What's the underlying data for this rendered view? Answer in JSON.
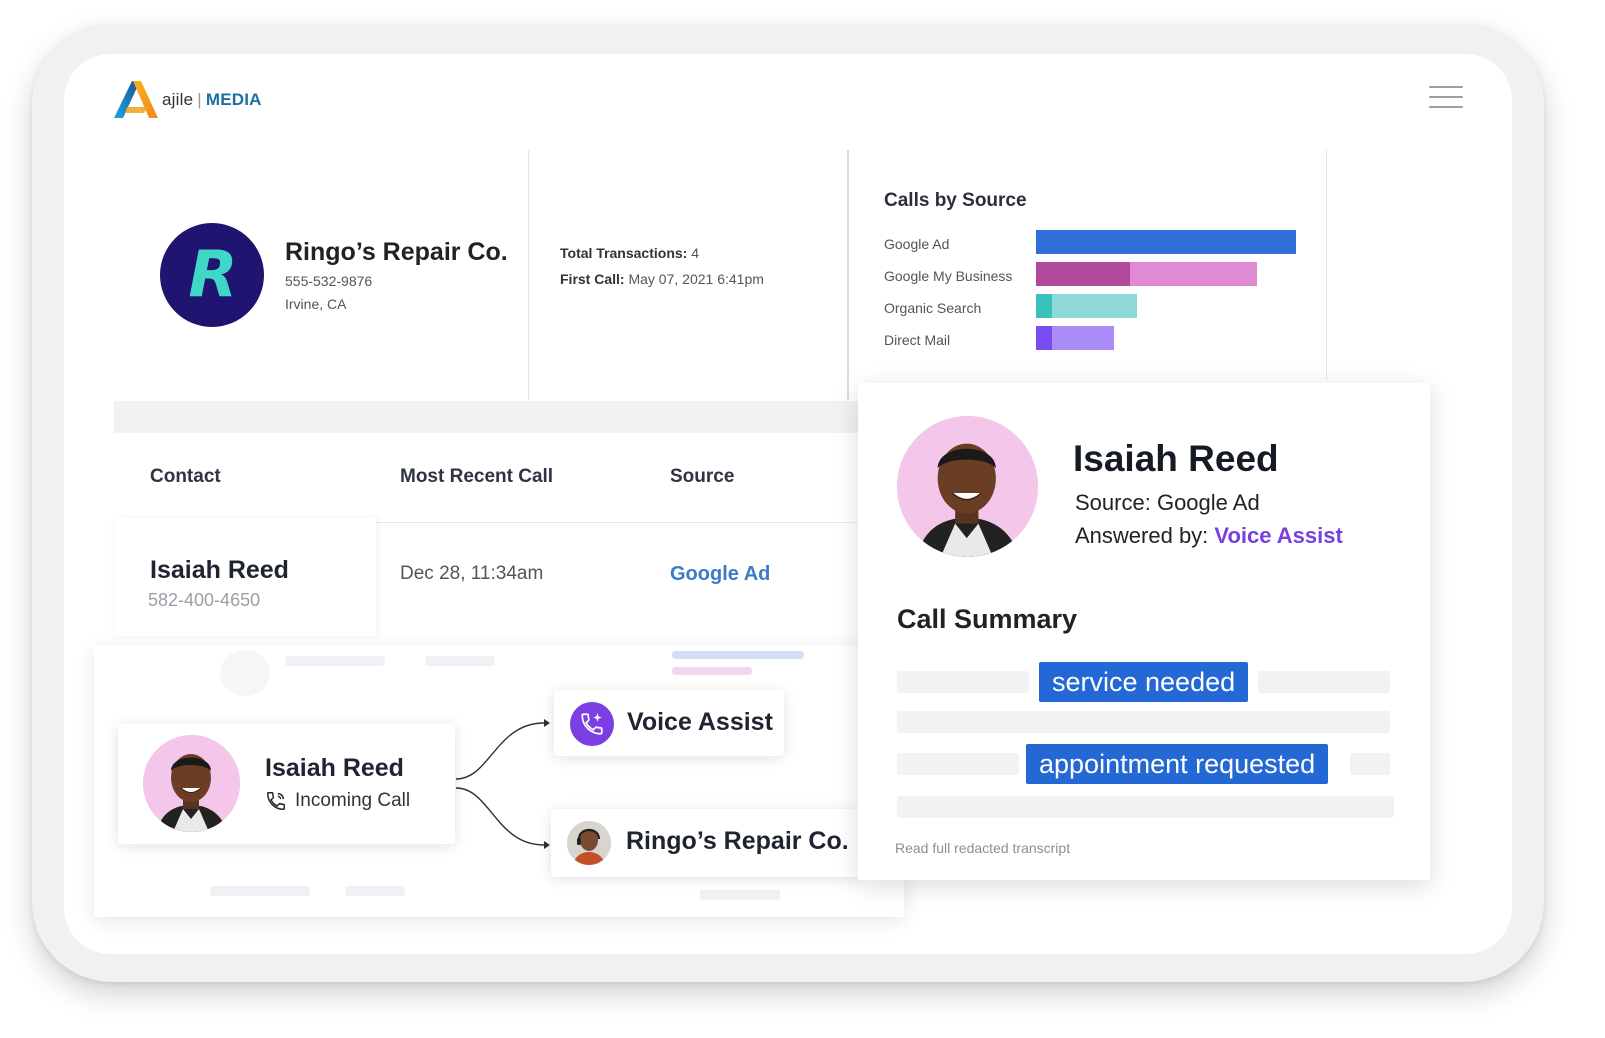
{
  "brand": {
    "logo_mark": "A",
    "name": "ajile",
    "separator": "|",
    "product": "MEDIA"
  },
  "menu": {
    "icon": "hamburger-menu-icon"
  },
  "business": {
    "initial": "R",
    "name": "Ringo’s Repair Co.",
    "phone": "555-532-9876",
    "location": "Irvine, CA",
    "total_transactions_label": "Total Transactions:",
    "total_transactions_value": "4",
    "first_call_label": "First Call:",
    "first_call_value": "May 07, 2021 6:41pm"
  },
  "chart_data": {
    "type": "bar",
    "title": "Calls by Source",
    "orientation": "horizontal",
    "categories": [
      "Google Ad",
      "Google My Business",
      "Organic Search",
      "Direct Mail"
    ],
    "values": [
      100,
      85,
      39,
      30
    ],
    "highlight_values": [
      0,
      36,
      6,
      6
    ],
    "colors": [
      {
        "dark": "#2f6fd6",
        "light": "#2f6fd6"
      },
      {
        "dark": "#b0489c",
        "light": "#df8ad2"
      },
      {
        "dark": "#39c2bc",
        "light": "#8ed9d7"
      },
      {
        "dark": "#7a4bf0",
        "light": "#ab8bf5"
      }
    ],
    "xlim": [
      0,
      100
    ],
    "grid": false,
    "legend": "none"
  },
  "table": {
    "headers": [
      "Contact",
      "Most Recent Call",
      "Source"
    ],
    "row": {
      "contact_name": "Isaiah Reed",
      "contact_phone": "582-400-4650",
      "most_recent_call": "Dec 28, 11:34am",
      "source": "Google Ad"
    }
  },
  "flow": {
    "caller_name": "Isaiah Reed",
    "caller_status": "Incoming Call",
    "route_primary": "Voice Assist",
    "route_secondary": "Ringo’s Repair Co."
  },
  "summary": {
    "name": "Isaiah Reed",
    "source_label": "Source:",
    "source_value": "Google Ad",
    "answered_label": "Answered by:",
    "answered_value": "Voice Assist",
    "title": "Call Summary",
    "tags": [
      "service needed",
      "appointment requested"
    ],
    "transcript_link": "Read full redacted transcript"
  }
}
